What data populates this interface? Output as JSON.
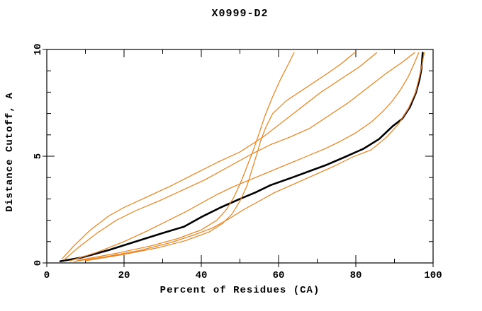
{
  "window": {
    "background": "#ffffff"
  },
  "chart_data": {
    "type": "line",
    "title": "X0999-D2",
    "xlabel": "Percent of Residues (CA)",
    "ylabel": "Distance Cutoff, A",
    "xlim": [
      0,
      100
    ],
    "ylim": [
      0,
      10
    ],
    "x_major_ticks": [
      0,
      20,
      40,
      60,
      80,
      100
    ],
    "x_minor_ticks": [
      10,
      30,
      50,
      70,
      90
    ],
    "y_major_ticks": [
      0,
      5,
      10
    ],
    "y_minor_ticks": [
      1,
      2,
      3,
      4,
      6,
      7,
      8,
      9
    ],
    "grid": false,
    "legend": "none",
    "colors": {
      "model_curve": "#000000",
      "reference_curves": "#ee8019"
    },
    "series": [
      {
        "name": "black-model-curve",
        "color": "#000000",
        "width": 2.6,
        "points": [
          [
            3.5,
            0.08
          ],
          [
            9,
            0.25
          ],
          [
            16,
            0.6
          ],
          [
            23,
            1.0
          ],
          [
            30,
            1.4
          ],
          [
            35.5,
            1.7
          ],
          [
            40,
            2.15
          ],
          [
            45,
            2.6
          ],
          [
            50,
            3.0
          ],
          [
            54,
            3.3
          ],
          [
            58,
            3.65
          ],
          [
            63.5,
            4.0
          ],
          [
            68,
            4.3
          ],
          [
            72.5,
            4.6
          ],
          [
            77,
            4.95
          ],
          [
            82,
            5.35
          ],
          [
            86,
            5.8
          ],
          [
            89.5,
            6.4
          ],
          [
            92,
            6.75
          ],
          [
            94,
            7.3
          ],
          [
            95.5,
            7.95
          ],
          [
            96.5,
            8.6
          ],
          [
            97,
            9.1
          ],
          [
            97.3,
            9.85
          ]
        ]
      },
      {
        "name": "orange-curve-steep-1",
        "color": "#ee8019",
        "width": 1.2,
        "points": [
          [
            8,
            0.12
          ],
          [
            18,
            0.45
          ],
          [
            27,
            0.8
          ],
          [
            34,
            1.15
          ],
          [
            40,
            1.55
          ],
          [
            44,
            2.0
          ],
          [
            46.5,
            2.5
          ],
          [
            48.5,
            3.1
          ],
          [
            50.5,
            3.9
          ],
          [
            52,
            4.6
          ],
          [
            53.5,
            5.3
          ],
          [
            55,
            6.1
          ],
          [
            56.5,
            6.9
          ],
          [
            58.5,
            7.8
          ],
          [
            60.5,
            8.6
          ],
          [
            62.5,
            9.3
          ],
          [
            64,
            9.85
          ]
        ]
      },
      {
        "name": "orange-curve-steep-2",
        "color": "#ee8019",
        "width": 1.2,
        "points": [
          [
            10,
            0.1
          ],
          [
            20,
            0.4
          ],
          [
            29,
            0.72
          ],
          [
            36,
            1.05
          ],
          [
            42,
            1.45
          ],
          [
            45.5,
            1.85
          ],
          [
            48,
            2.3
          ],
          [
            50,
            2.9
          ],
          [
            51.8,
            3.6
          ],
          [
            53,
            4.3
          ],
          [
            54.2,
            5.0
          ],
          [
            55.5,
            5.8
          ],
          [
            56.8,
            6.4
          ],
          [
            58.5,
            7.0
          ],
          [
            62,
            7.6
          ],
          [
            67,
            8.2
          ],
          [
            72,
            8.8
          ],
          [
            76,
            9.3
          ],
          [
            79.7,
            9.85
          ]
        ]
      },
      {
        "name": "orange-curve-fan-upper",
        "color": "#ee8019",
        "width": 1.2,
        "points": [
          [
            4,
            0.2
          ],
          [
            7,
            0.8
          ],
          [
            11,
            1.5
          ],
          [
            16,
            2.2
          ],
          [
            20,
            2.6
          ],
          [
            26,
            3.1
          ],
          [
            32,
            3.6
          ],
          [
            38,
            4.15
          ],
          [
            44,
            4.7
          ],
          [
            50,
            5.2
          ],
          [
            56,
            5.9
          ],
          [
            61,
            6.6
          ],
          [
            66,
            7.3
          ],
          [
            71,
            8.0
          ],
          [
            76,
            8.6
          ],
          [
            81,
            9.2
          ],
          [
            85.4,
            9.85
          ]
        ]
      },
      {
        "name": "orange-curve-fan-lower",
        "color": "#ee8019",
        "width": 1.2,
        "points": [
          [
            4.5,
            0.15
          ],
          [
            8,
            0.7
          ],
          [
            13,
            1.4
          ],
          [
            18,
            2.0
          ],
          [
            23,
            2.45
          ],
          [
            29,
            2.9
          ],
          [
            35,
            3.4
          ],
          [
            41,
            3.9
          ],
          [
            47,
            4.5
          ],
          [
            53,
            5.1
          ],
          [
            58,
            5.55
          ],
          [
            63,
            5.9
          ],
          [
            68,
            6.3
          ],
          [
            73,
            6.9
          ],
          [
            78,
            7.5
          ],
          [
            83,
            8.2
          ],
          [
            88,
            8.9
          ],
          [
            92,
            9.4
          ],
          [
            95.2,
            9.85
          ]
        ]
      },
      {
        "name": "orange-curve-companion-left",
        "color": "#ee8019",
        "width": 1.2,
        "points": [
          [
            6,
            0.1
          ],
          [
            13,
            0.5
          ],
          [
            20,
            1.0
          ],
          [
            26,
            1.5
          ],
          [
            31,
            1.95
          ],
          [
            36,
            2.4
          ],
          [
            40,
            2.8
          ],
          [
            44,
            3.2
          ],
          [
            48,
            3.55
          ],
          [
            52,
            3.85
          ],
          [
            56,
            4.15
          ],
          [
            60,
            4.45
          ],
          [
            64,
            4.75
          ],
          [
            68,
            5.05
          ],
          [
            72,
            5.35
          ],
          [
            76,
            5.7
          ],
          [
            80,
            6.1
          ],
          [
            84,
            6.6
          ],
          [
            87,
            7.1
          ],
          [
            89.5,
            7.6
          ],
          [
            91.5,
            8.1
          ],
          [
            93.5,
            8.7
          ],
          [
            95,
            9.3
          ],
          [
            96.3,
            9.85
          ]
        ]
      },
      {
        "name": "orange-curve-companion-right",
        "color": "#ee8019",
        "width": 1.2,
        "points": [
          [
            7,
            0.07
          ],
          [
            15,
            0.28
          ],
          [
            24,
            0.58
          ],
          [
            32,
            0.95
          ],
          [
            38,
            1.3
          ],
          [
            43,
            1.65
          ],
          [
            47,
            2.05
          ],
          [
            51,
            2.5
          ],
          [
            55,
            2.9
          ],
          [
            59,
            3.3
          ],
          [
            64,
            3.7
          ],
          [
            69,
            4.1
          ],
          [
            74,
            4.5
          ],
          [
            79,
            4.95
          ],
          [
            84,
            5.3
          ],
          [
            88,
            5.9
          ],
          [
            91,
            6.5
          ],
          [
            93.5,
            7.2
          ],
          [
            95.5,
            8.0
          ],
          [
            96.8,
            9.0
          ],
          [
            97.7,
            9.85
          ]
        ]
      }
    ]
  }
}
